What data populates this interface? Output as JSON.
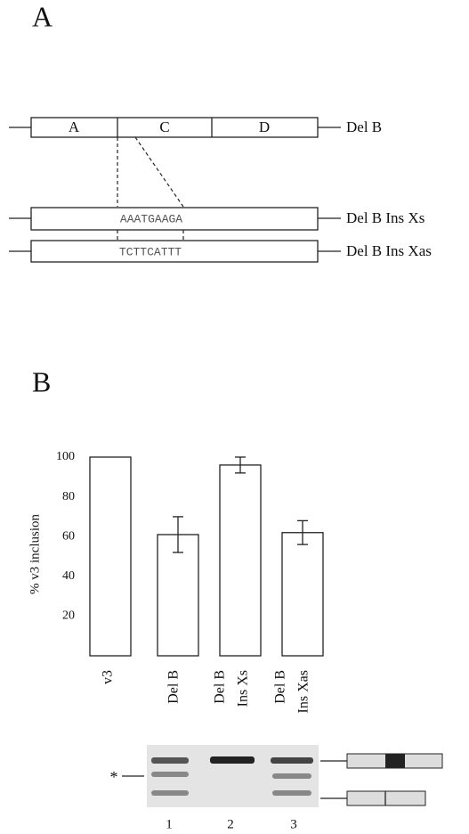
{
  "panel_a": {
    "label": "A",
    "constructs": [
      {
        "name": "Del B",
        "segments": [
          "A",
          "C",
          "D"
        ]
      },
      {
        "name": "Del B Ins Xs",
        "insert": "AAATGAAGA"
      },
      {
        "name": "Del B Ins Xas",
        "insert": "TCTTCATTT"
      }
    ]
  },
  "chart_data": {
    "type": "bar",
    "panel_label": "B",
    "y_label": "% v3 inclusion",
    "categories": [
      [
        "v3"
      ],
      [
        "Del B"
      ],
      [
        "Del B",
        "Ins Xs"
      ],
      [
        "Del B",
        "Ins Xas"
      ]
    ],
    "values": [
      100,
      61,
      96,
      62
    ],
    "errors": [
      null,
      9,
      4,
      6
    ],
    "color": "#ffffff",
    "ylim": [
      0,
      100
    ],
    "yticks": [
      20,
      40,
      60,
      80,
      100
    ],
    "grid": false
  },
  "gel": {
    "lanes": [
      "1",
      "2",
      "3"
    ],
    "marker": "*"
  }
}
